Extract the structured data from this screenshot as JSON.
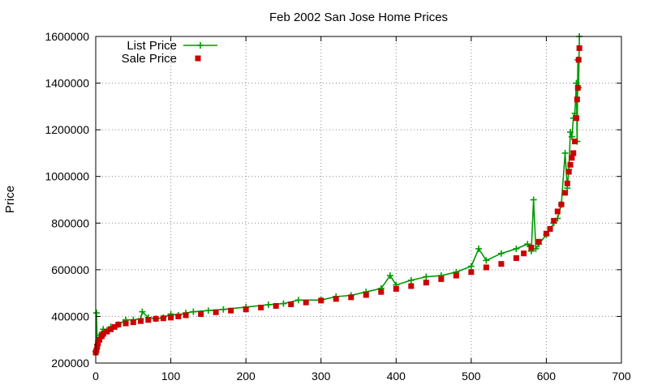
{
  "chart_data": {
    "type": "scatter",
    "title": "Feb 2002 San Jose Home Prices",
    "xlabel": "",
    "ylabel": "Price",
    "xlim": [
      0,
      700
    ],
    "ylim": [
      200000,
      1600000
    ],
    "xticks": [
      0,
      100,
      200,
      300,
      400,
      500,
      600,
      700
    ],
    "yticks": [
      200000,
      400000,
      600000,
      800000,
      1000000,
      1200000,
      1400000,
      1600000
    ],
    "grid": true,
    "legend_position": "top-left",
    "series": [
      {
        "name": "List Price",
        "style": "linespoints-plus",
        "color": "#009900",
        "x": [
          0,
          1,
          2,
          5,
          10,
          15,
          20,
          30,
          40,
          50,
          60,
          62,
          70,
          80,
          90,
          100,
          110,
          120,
          130,
          150,
          170,
          200,
          230,
          250,
          270,
          300,
          320,
          340,
          360,
          380,
          392,
          400,
          420,
          440,
          460,
          480,
          500,
          510,
          520,
          540,
          560,
          575,
          580,
          583,
          586,
          590,
          600,
          610,
          615,
          620,
          625,
          628,
          630,
          632,
          634,
          636,
          638,
          640,
          641,
          642,
          643,
          644
        ],
        "y": [
          250000,
          415000,
          280000,
          320000,
          345000,
          340000,
          355000,
          365000,
          385000,
          385000,
          390000,
          420000,
          395000,
          390000,
          395000,
          410000,
          405000,
          415000,
          420000,
          425000,
          430000,
          440000,
          450000,
          455000,
          470000,
          470000,
          485000,
          490000,
          505000,
          520000,
          575000,
          535000,
          555000,
          570000,
          575000,
          590000,
          615000,
          690000,
          640000,
          670000,
          690000,
          710000,
          680000,
          900000,
          690000,
          710000,
          750000,
          800000,
          820000,
          880000,
          1100000,
          950000,
          1030000,
          1190000,
          1170000,
          1250000,
          1270000,
          1400000,
          1150000,
          1500000,
          1380000,
          1600000
        ]
      },
      {
        "name": "Sale Price",
        "style": "points-square",
        "color": "#cc0000",
        "x": [
          0,
          1,
          2,
          3,
          5,
          8,
          10,
          15,
          20,
          25,
          30,
          40,
          50,
          60,
          70,
          80,
          90,
          100,
          110,
          120,
          140,
          160,
          180,
          200,
          220,
          240,
          260,
          280,
          300,
          320,
          340,
          360,
          380,
          400,
          420,
          440,
          460,
          480,
          500,
          520,
          540,
          560,
          570,
          580,
          590,
          600,
          605,
          610,
          615,
          620,
          625,
          628,
          630,
          632,
          634,
          636,
          638,
          640,
          641,
          642,
          643,
          644
        ],
        "y": [
          245000,
          255000,
          270000,
          285000,
          300000,
          315000,
          325000,
          335000,
          345000,
          355000,
          365000,
          370000,
          375000,
          380000,
          385000,
          390000,
          392000,
          395000,
          400000,
          405000,
          410000,
          418000,
          425000,
          430000,
          438000,
          445000,
          452000,
          460000,
          468000,
          475000,
          482000,
          492000,
          505000,
          518000,
          530000,
          545000,
          560000,
          575000,
          590000,
          610000,
          625000,
          650000,
          670000,
          695000,
          720000,
          755000,
          775000,
          810000,
          850000,
          880000,
          930000,
          970000,
          1020000,
          1050000,
          1080000,
          1100000,
          1150000,
          1250000,
          1330000,
          1380000,
          1500000,
          1550000
        ]
      }
    ]
  }
}
